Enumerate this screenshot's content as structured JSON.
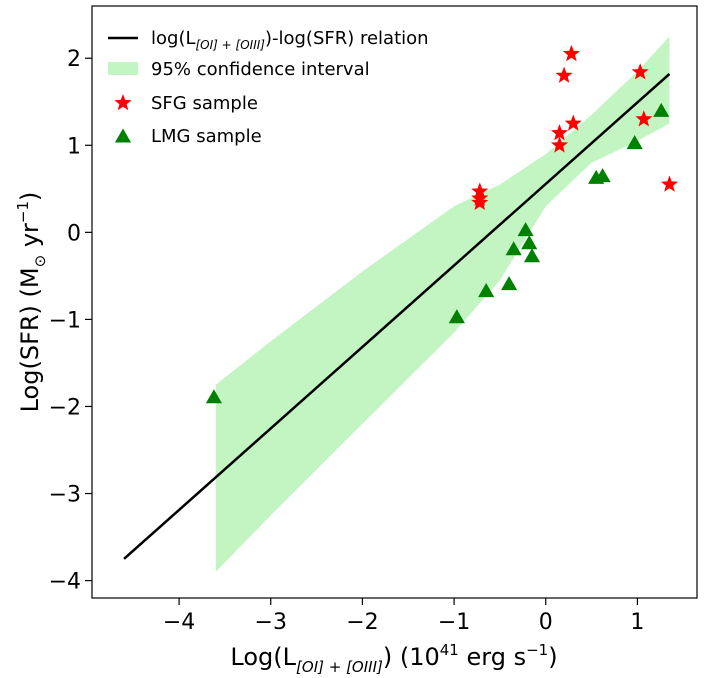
{
  "chart_data": {
    "type": "scatter",
    "title": "",
    "xlabel": {
      "prefix": "Log(L",
      "subscript": "[OI] + [OIII]",
      "middle": ") (10",
      "superscript": "41",
      "suffix": " erg s",
      "suffix_superscript": "−1",
      "close": ")"
    },
    "ylabel": {
      "prefix": "Log(SFR) (M",
      "subscript": "⊙",
      "middle": " yr",
      "superscript": "−1",
      "close": ")"
    },
    "xlim": [
      -4.95,
      1.65
    ],
    "ylim": [
      -4.2,
      2.6
    ],
    "xticks": [
      -4,
      -3,
      -2,
      -1,
      0,
      1
    ],
    "yticks": [
      -4,
      -3,
      -2,
      -1,
      0,
      1,
      2
    ],
    "xtick_labels": [
      "−4",
      "−3",
      "−2",
      "−1",
      "0",
      "1"
    ],
    "ytick_labels": [
      "−4",
      "−3",
      "−2",
      "−1",
      "0",
      "1",
      "2"
    ],
    "grid": false,
    "legend_position": "top-left",
    "legend": {
      "relation": {
        "prefix": "log(L",
        "subscript": "[OI] + [OIII]",
        "suffix": ")-log(SFR) relation"
      },
      "confidence": "95% confidence interval",
      "sfg": "SFG sample",
      "lmg": "LMG sample"
    },
    "fit_line": {
      "x": [
        -4.6,
        1.35
      ],
      "y": [
        -3.75,
        1.82
      ],
      "color": "#000000"
    },
    "confidence_band": {
      "x": [
        -3.6,
        -3.0,
        -2.0,
        -1.0,
        -0.5,
        0.0,
        0.5,
        1.0,
        1.35
      ],
      "upper": [
        -1.75,
        -1.25,
        -0.45,
        0.3,
        0.55,
        0.9,
        1.35,
        1.85,
        2.25
      ],
      "lower": [
        -3.9,
        -3.25,
        -2.2,
        -1.15,
        -0.55,
        0.3,
        0.8,
        1.05,
        1.25
      ],
      "color": "#c3f5c3"
    },
    "series": [
      {
        "name": "SFG sample",
        "marker": "star",
        "color": "#ff0000",
        "points": [
          [
            -0.72,
            0.47
          ],
          [
            -0.72,
            0.39
          ],
          [
            -0.72,
            0.34
          ],
          [
            0.15,
            1.14
          ],
          [
            0.15,
            1.0
          ],
          [
            0.2,
            1.8
          ],
          [
            0.28,
            2.05
          ],
          [
            0.3,
            1.25
          ],
          [
            1.03,
            1.84
          ],
          [
            1.07,
            1.3
          ],
          [
            1.35,
            0.55
          ]
        ]
      },
      {
        "name": "LMG sample",
        "marker": "triangle",
        "color": "#008000",
        "points": [
          [
            -3.62,
            -1.9
          ],
          [
            -0.97,
            -0.98
          ],
          [
            -0.65,
            -0.68
          ],
          [
            -0.4,
            -0.6
          ],
          [
            -0.35,
            -0.2
          ],
          [
            -0.22,
            0.02
          ],
          [
            -0.18,
            -0.13
          ],
          [
            -0.15,
            -0.28
          ],
          [
            0.55,
            0.62
          ],
          [
            0.62,
            0.64
          ],
          [
            0.97,
            1.02
          ],
          [
            1.26,
            1.39
          ]
        ]
      }
    ]
  }
}
